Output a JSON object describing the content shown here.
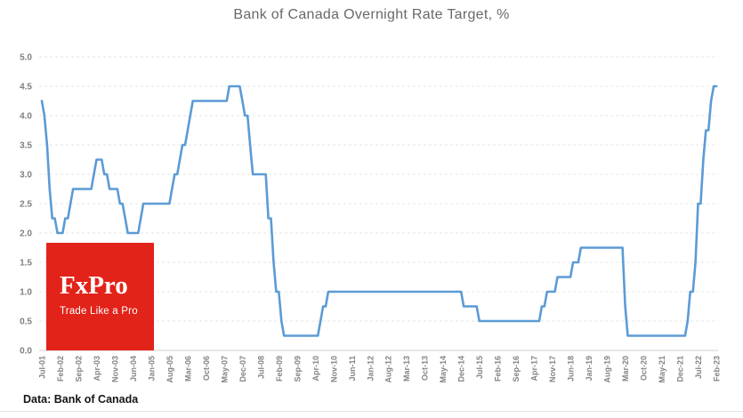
{
  "title": "Bank of Canada Overnight Rate Target, %",
  "source_note": "Data: Bank of Canada",
  "logo": {
    "name": "FxPro",
    "tagline": "Trade Like a Pro",
    "bg_color": "#E2231A",
    "text_color": "#FFFFFF"
  },
  "colors": {
    "line": "#5B9BD5",
    "grid": "#E4E4E4",
    "zero_axis": "#D2D2D2",
    "title_text": "#696969",
    "tick_text": "#848484"
  },
  "chart_data": {
    "type": "line",
    "title": "Bank of Canada Overnight Rate Target, %",
    "series_name": "Overnight Rate Target (%)",
    "x_frequency": "monthly",
    "x_start": "Jul-01",
    "x_end": "Feb-23",
    "x_tick_every_n_months": 7,
    "x_tick_labels": [
      "Jul-01",
      "Feb-02",
      "Sep-02",
      "Apr-03",
      "Nov-03",
      "Jun-04",
      "Jan-05",
      "Aug-05",
      "Mar-06",
      "Oct-06",
      "May-07",
      "Dec-07",
      "Jul-08",
      "Feb-09",
      "Sep-09",
      "Apr-10",
      "Nov-10",
      "Jun-11",
      "Jan-12",
      "Aug-12",
      "Mar-13",
      "Oct-13",
      "May-14",
      "Dec-14",
      "Jul-15",
      "Feb-16",
      "Sep-16",
      "Apr-17",
      "Nov-17",
      "Jun-18",
      "Jan-19",
      "Aug-19",
      "Mar-20",
      "Oct-20",
      "May-21",
      "Dec-21",
      "Jul-22",
      "Feb-23"
    ],
    "y_tick_labels": [
      "5.0",
      "4.5",
      "4.0",
      "3.5",
      "3.0",
      "2.5",
      "2.0",
      "1.5",
      "1.0",
      "0.5",
      "0.0"
    ],
    "ylim": [
      0,
      5
    ],
    "grid": "horizontal-dashed",
    "legend": "none",
    "values_monthly": [
      4.25,
      4.0,
      3.5,
      2.75,
      2.25,
      2.25,
      2.0,
      2.0,
      2.0,
      2.25,
      2.25,
      2.5,
      2.75,
      2.75,
      2.75,
      2.75,
      2.75,
      2.75,
      2.75,
      2.75,
      3.0,
      3.25,
      3.25,
      3.25,
      3.0,
      3.0,
      2.75,
      2.75,
      2.75,
      2.75,
      2.5,
      2.5,
      2.25,
      2.0,
      2.0,
      2.0,
      2.0,
      2.0,
      2.25,
      2.5,
      2.5,
      2.5,
      2.5,
      2.5,
      2.5,
      2.5,
      2.5,
      2.5,
      2.5,
      2.5,
      2.75,
      3.0,
      3.0,
      3.25,
      3.5,
      3.5,
      3.75,
      4.0,
      4.25,
      4.25,
      4.25,
      4.25,
      4.25,
      4.25,
      4.25,
      4.25,
      4.25,
      4.25,
      4.25,
      4.25,
      4.25,
      4.25,
      4.5,
      4.5,
      4.5,
      4.5,
      4.5,
      4.25,
      4.0,
      4.0,
      3.5,
      3.0,
      3.0,
      3.0,
      3.0,
      3.0,
      3.0,
      2.25,
      2.25,
      1.5,
      1.0,
      1.0,
      0.5,
      0.25,
      0.25,
      0.25,
      0.25,
      0.25,
      0.25,
      0.25,
      0.25,
      0.25,
      0.25,
      0.25,
      0.25,
      0.25,
      0.25,
      0.5,
      0.75,
      0.75,
      1.0,
      1.0,
      1.0,
      1.0,
      1.0,
      1.0,
      1.0,
      1.0,
      1.0,
      1.0,
      1.0,
      1.0,
      1.0,
      1.0,
      1.0,
      1.0,
      1.0,
      1.0,
      1.0,
      1.0,
      1.0,
      1.0,
      1.0,
      1.0,
      1.0,
      1.0,
      1.0,
      1.0,
      1.0,
      1.0,
      1.0,
      1.0,
      1.0,
      1.0,
      1.0,
      1.0,
      1.0,
      1.0,
      1.0,
      1.0,
      1.0,
      1.0,
      1.0,
      1.0,
      1.0,
      1.0,
      1.0,
      1.0,
      1.0,
      1.0,
      1.0,
      1.0,
      0.75,
      0.75,
      0.75,
      0.75,
      0.75,
      0.75,
      0.5,
      0.5,
      0.5,
      0.5,
      0.5,
      0.5,
      0.5,
      0.5,
      0.5,
      0.5,
      0.5,
      0.5,
      0.5,
      0.5,
      0.5,
      0.5,
      0.5,
      0.5,
      0.5,
      0.5,
      0.5,
      0.5,
      0.5,
      0.5,
      0.75,
      0.75,
      1.0,
      1.0,
      1.0,
      1.0,
      1.25,
      1.25,
      1.25,
      1.25,
      1.25,
      1.25,
      1.5,
      1.5,
      1.5,
      1.75,
      1.75,
      1.75,
      1.75,
      1.75,
      1.75,
      1.75,
      1.75,
      1.75,
      1.75,
      1.75,
      1.75,
      1.75,
      1.75,
      1.75,
      1.75,
      1.75,
      0.75,
      0.25,
      0.25,
      0.25,
      0.25,
      0.25,
      0.25,
      0.25,
      0.25,
      0.25,
      0.25,
      0.25,
      0.25,
      0.25,
      0.25,
      0.25,
      0.25,
      0.25,
      0.25,
      0.25,
      0.25,
      0.25,
      0.25,
      0.25,
      0.5,
      1.0,
      1.0,
      1.5,
      2.5,
      2.5,
      3.25,
      3.75,
      3.75,
      4.25,
      4.5,
      4.5
    ]
  }
}
